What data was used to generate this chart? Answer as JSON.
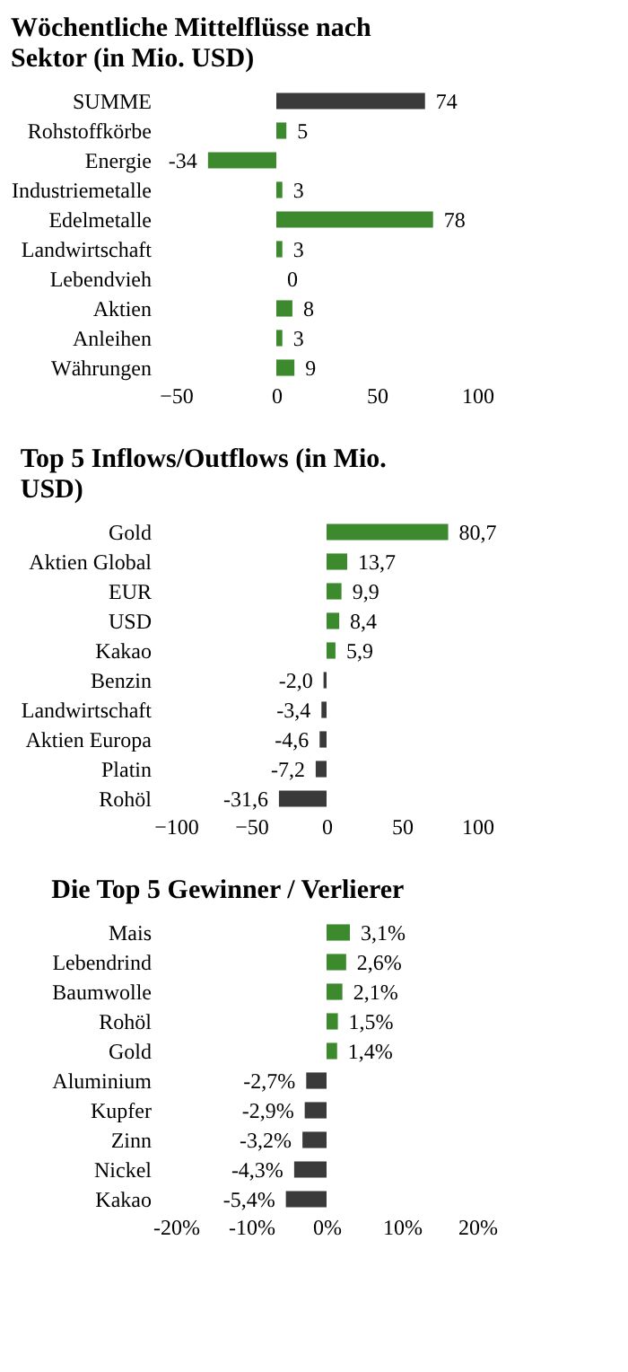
{
  "chart_data": [
    {
      "type": "bar",
      "orientation": "horizontal",
      "title": "Wöchentliche Mittelflüsse nach Sektor (in Mio. USD)",
      "categories": [
        "SUMME",
        "Rohstoffkörbe",
        "Energie",
        "Industriemetalle",
        "Edelmetalle",
        "Landwirtschaft",
        "Lebendvieh",
        "Aktien",
        "Anleihen",
        "Währungen"
      ],
      "values": [
        74,
        5,
        -34,
        3,
        78,
        3,
        0,
        8,
        3,
        9
      ],
      "colors": [
        "#3a3a3a",
        "#3d8a2e",
        "#3d8a2e",
        "#3d8a2e",
        "#3d8a2e",
        "#3d8a2e",
        "#3d8a2e",
        "#3d8a2e",
        "#3d8a2e",
        "#3d8a2e"
      ],
      "data_labels": true,
      "xlim": [
        -50,
        100
      ],
      "xticks": [
        -50,
        0,
        50,
        100
      ],
      "tick_labels": "x",
      "grid": false
    },
    {
      "type": "bar",
      "orientation": "horizontal",
      "title": "Top 5 Inflows/Outflows (in Mio. USD)",
      "categories": [
        "Gold",
        "Aktien Global",
        "EUR",
        "USD",
        "Kakao",
        "Benzin",
        "Landwirtschaft",
        "Aktien Europa",
        "Platin",
        "Rohöl"
      ],
      "values": [
        80.7,
        13.7,
        9.9,
        8.4,
        5.9,
        -2.0,
        -3.4,
        -4.6,
        -7.2,
        -31.6
      ],
      "value_labels": [
        "80,7",
        "13,7",
        "9,9",
        "8,4",
        "5,9",
        "-2,0",
        "-3,4",
        "-4,6",
        "-7,2",
        "-31,6"
      ],
      "colors": [
        "#3d8a2e",
        "#3d8a2e",
        "#3d8a2e",
        "#3d8a2e",
        "#3d8a2e",
        "#3a3a3a",
        "#3a3a3a",
        "#3a3a3a",
        "#3a3a3a",
        "#3a3a3a"
      ],
      "xlim": [
        -100,
        100
      ],
      "xticks": [
        -100,
        -50,
        0,
        50,
        100
      ],
      "tick_labels": "x",
      "grid": false
    },
    {
      "type": "bar",
      "orientation": "horizontal",
      "title": "Die Top 5 Gewinner / Verlierer",
      "categories": [
        "Mais",
        "Lebendrind",
        "Baumwolle",
        "Rohöl",
        "Gold",
        "Aluminium",
        "Kupfer",
        "Zinn",
        "Nickel",
        "Kakao"
      ],
      "values": [
        3.1,
        2.6,
        2.1,
        1.5,
        1.4,
        -2.7,
        -2.9,
        -3.2,
        -4.3,
        -5.4
      ],
      "value_labels": [
        "3,1%",
        "2,6%",
        "2,1%",
        "1,5%",
        "1,4%",
        "-2,7%",
        "-2,9%",
        "-3,2%",
        "-4,3%",
        "-5,4%"
      ],
      "colors": [
        "#3d8a2e",
        "#3d8a2e",
        "#3d8a2e",
        "#3d8a2e",
        "#3d8a2e",
        "#3a3a3a",
        "#3a3a3a",
        "#3a3a3a",
        "#3a3a3a",
        "#3a3a3a"
      ],
      "xlim": [
        -20,
        20
      ],
      "xticks": [
        {
          "value": -20,
          "label": "-20%"
        },
        {
          "value": -10,
          "label": "-10%"
        },
        {
          "value": 0,
          "label": "0%"
        },
        {
          "value": 10,
          "label": "10%"
        },
        {
          "value": 20,
          "label": "20%"
        }
      ],
      "tick_labels": "x",
      "grid": false
    }
  ]
}
